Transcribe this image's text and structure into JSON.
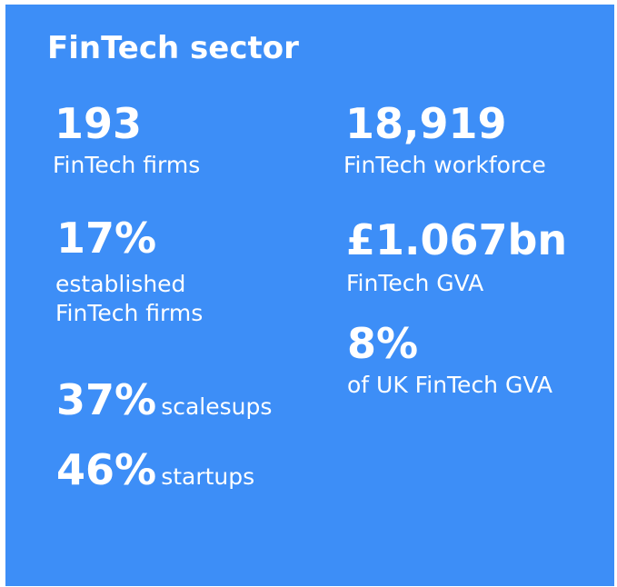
{
  "title": "FinTech sector",
  "stats": [
    {
      "value": "193",
      "label": "FinTech firms"
    },
    {
      "value": "18,919",
      "label": "FinTech workforce"
    },
    {
      "value": "17%",
      "label": "established FinTech firms"
    },
    {
      "value": "£1.067bn",
      "label": "FinTech GVA"
    },
    {
      "value": "8%",
      "label": "of UK FinTech GVA"
    },
    {
      "value": "37%",
      "label": "scalesups"
    },
    {
      "value": "46%",
      "label": "startups"
    }
  ]
}
